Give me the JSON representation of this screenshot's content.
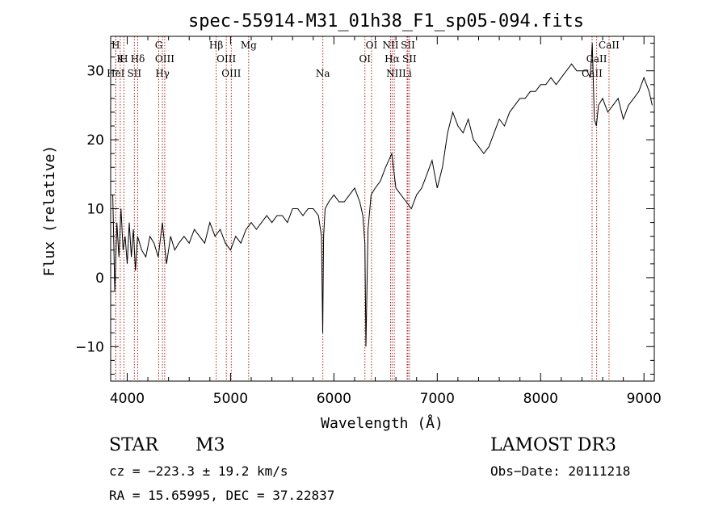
{
  "chart_data": {
    "type": "line",
    "title": "spec-55914-M31_01h38_F1_sp05-094.fits",
    "xlabel": "Wavelength (Å)",
    "ylabel": "Flux (relative)",
    "xlim": [
      3840,
      9100
    ],
    "ylim": [
      -15,
      35
    ],
    "xticks": [
      4000,
      5000,
      6000,
      7000,
      8000,
      9000
    ],
    "yticks": [
      -10,
      0,
      10,
      20,
      30
    ],
    "grid": false,
    "line_color": "#000000",
    "marker_color": "#b22222",
    "spectrum": {
      "x": [
        3860,
        3880,
        3900,
        3920,
        3940,
        3960,
        3980,
        4000,
        4020,
        4040,
        4060,
        4080,
        4100,
        4140,
        4180,
        4220,
        4260,
        4300,
        4340,
        4380,
        4420,
        4460,
        4500,
        4550,
        4600,
        4650,
        4700,
        4750,
        4800,
        4850,
        4900,
        4950,
        5000,
        5050,
        5100,
        5150,
        5200,
        5250,
        5300,
        5350,
        5400,
        5450,
        5500,
        5550,
        5600,
        5650,
        5700,
        5750,
        5800,
        5850,
        5880,
        5892,
        5900,
        5915,
        5950,
        6000,
        6050,
        6100,
        6150,
        6200,
        6250,
        6280,
        6300,
        6310,
        6330,
        6360,
        6400,
        6450,
        6500,
        6530,
        6560,
        6600,
        6650,
        6700,
        6750,
        6800,
        6850,
        6900,
        6950,
        7000,
        7050,
        7100,
        7150,
        7200,
        7250,
        7300,
        7350,
        7400,
        7450,
        7500,
        7550,
        7600,
        7650,
        7700,
        7750,
        7800,
        7850,
        7900,
        7950,
        8000,
        8050,
        8100,
        8150,
        8200,
        8250,
        8300,
        8350,
        8400,
        8450,
        8480,
        8500,
        8520,
        8540,
        8560,
        8600,
        8650,
        8700,
        8750,
        8800,
        8850,
        8900,
        8950,
        9000,
        9050,
        9080
      ],
      "y": [
        12,
        -2,
        8,
        3,
        10,
        4,
        6,
        2,
        8,
        3,
        7,
        1,
        6,
        4,
        3,
        6,
        5,
        3,
        8,
        2,
        6,
        4,
        5,
        6,
        5,
        7,
        6,
        5,
        8,
        6,
        7,
        5,
        4,
        6,
        5,
        7,
        8,
        7,
        8,
        9,
        8,
        9,
        9,
        8,
        10,
        10,
        9,
        10,
        10,
        9,
        6,
        -8,
        6,
        10,
        11,
        12,
        11,
        11,
        12,
        13,
        11,
        9,
        5,
        -10,
        7,
        12,
        13,
        14,
        16,
        17,
        18,
        13,
        12,
        11,
        10,
        12,
        13,
        15,
        17,
        13,
        16,
        21,
        24,
        22,
        21,
        23,
        20,
        19,
        18,
        19,
        21,
        23,
        22,
        24,
        25,
        26,
        26,
        27,
        27,
        28,
        28,
        29,
        28,
        29,
        30,
        31,
        30,
        30,
        30,
        29,
        34,
        23,
        22,
        25,
        26,
        24,
        25,
        26,
        23,
        25,
        26,
        27,
        29,
        27,
        25
      ]
    },
    "lines": [
      {
        "label": "H",
        "x": 3889,
        "tier": 0
      },
      {
        "label": "K",
        "x": 3933,
        "tier": 1
      },
      {
        "label": "H",
        "x": 3968,
        "tier": 1
      },
      {
        "label": "HeI",
        "x": 3889,
        "tier": 2
      },
      {
        "label": "SII",
        "x": 4069,
        "tier": 2
      },
      {
        "label": "Hδ",
        "x": 4102,
        "tier": 1
      },
      {
        "label": "G",
        "x": 4305,
        "tier": 0
      },
      {
        "label": "OIII",
        "x": 4363,
        "tier": 1
      },
      {
        "label": "Hγ",
        "x": 4341,
        "tier": 2
      },
      {
        "label": "Hβ",
        "x": 4861,
        "tier": 0
      },
      {
        "label": "OIII",
        "x": 4959,
        "tier": 1
      },
      {
        "label": "OIII",
        "x": 5007,
        "tier": 2
      },
      {
        "label": "Mg",
        "x": 5175,
        "tier": 0
      },
      {
        "label": "Na",
        "x": 5893,
        "tier": 2
      },
      {
        "label": "OI",
        "x": 6300,
        "tier": 1
      },
      {
        "label": "OI",
        "x": 6364,
        "tier": 0
      },
      {
        "label": "NII",
        "x": 6548,
        "tier": 0
      },
      {
        "label": "Hα",
        "x": 6563,
        "tier": 1
      },
      {
        "label": "NII",
        "x": 6584,
        "tier": 2
      },
      {
        "label": "SII",
        "x": 6716,
        "tier": 0
      },
      {
        "label": "SII",
        "x": 6731,
        "tier": 1
      },
      {
        "label": "Li",
        "x": 6708,
        "tier": 2
      },
      {
        "label": "CaII",
        "x": 8498,
        "tier": 2
      },
      {
        "label": "CaII",
        "x": 8542,
        "tier": 1
      },
      {
        "label": "CaII",
        "x": 8662,
        "tier": 0
      }
    ]
  },
  "info": {
    "object_class": "STAR",
    "subclass": "M3",
    "survey": "LAMOST DR3",
    "velocity": "cz = −223.3 ± 19.2 km/s",
    "obs_date": "Obs−Date: 20111218",
    "coords": "RA =  15.65995, DEC =  37.22837"
  }
}
